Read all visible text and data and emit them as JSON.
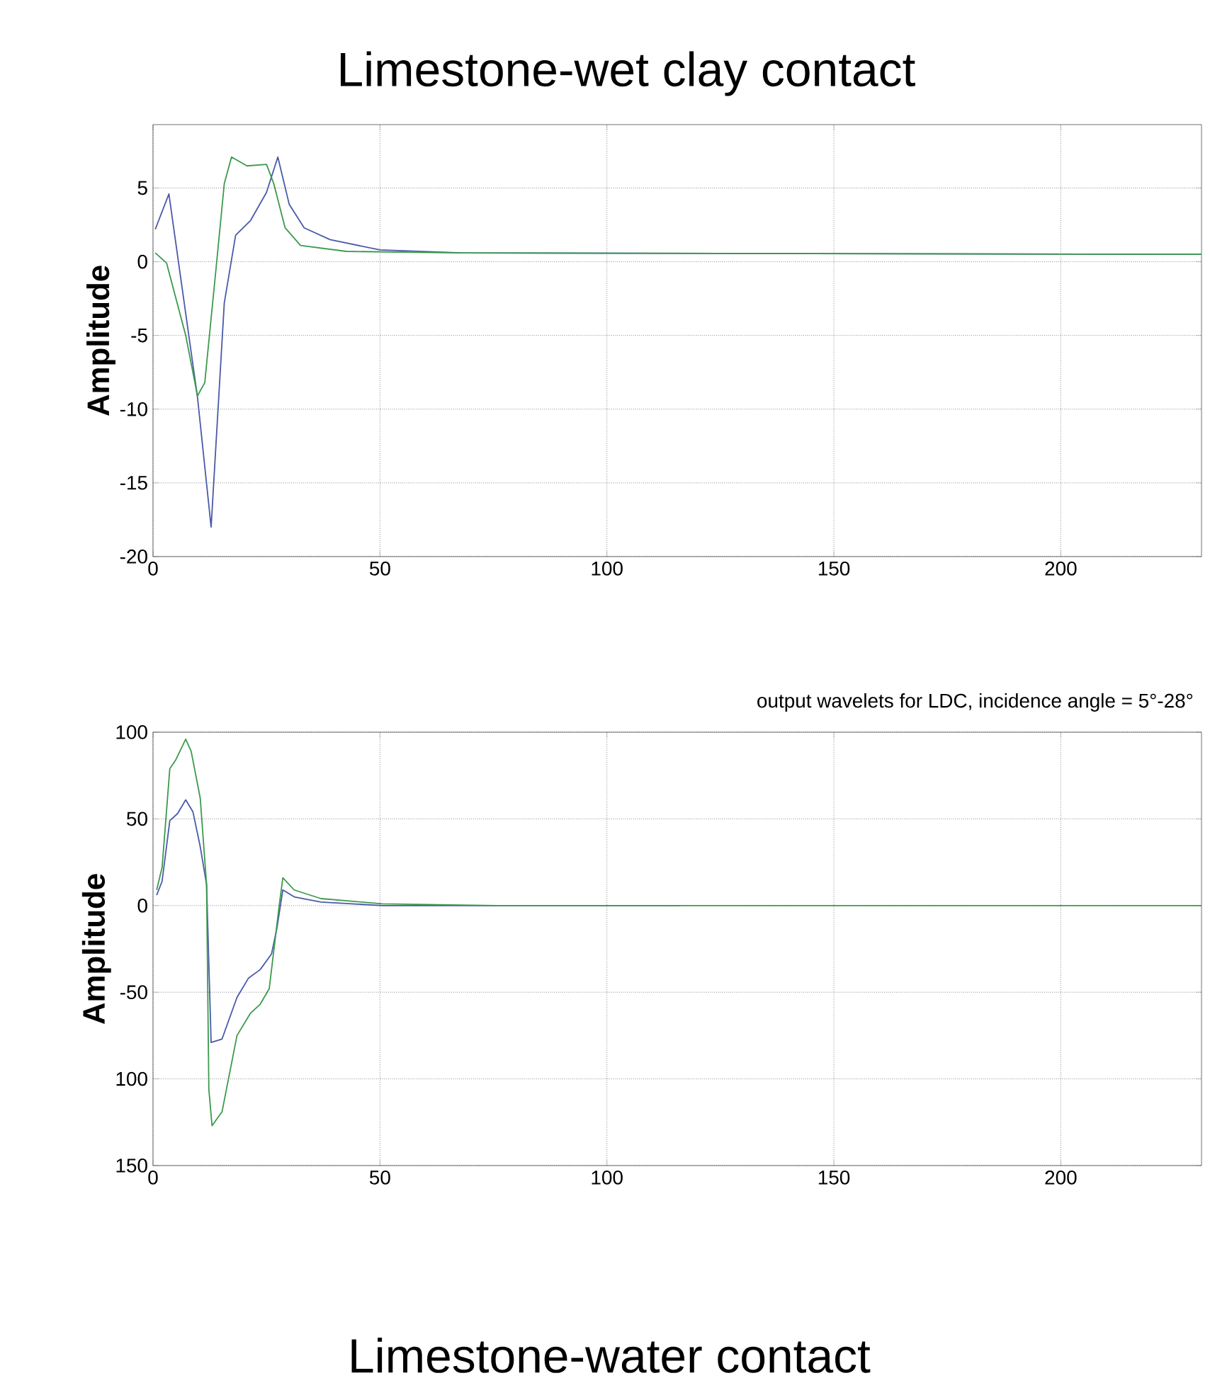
{
  "chart_data": [
    {
      "type": "line",
      "title": "Limestone-wet clay contact",
      "ylabel": "Amplitude",
      "xlim": [
        0,
        231
      ],
      "ylim": [
        -20,
        9.3
      ],
      "xticks": [
        0,
        50,
        100,
        150,
        200
      ],
      "yticks": [
        -20,
        -15,
        -10,
        -5,
        0,
        5
      ],
      "grid": true,
      "series": [
        {
          "color": "#4a5aa8",
          "x": [
            0.5,
            3.5,
            9.8,
            12.8,
            15.7,
            18.2,
            21.5,
            25,
            27.5,
            30,
            33.3,
            39,
            50,
            68,
            231
          ],
          "values": [
            2.2,
            4.6,
            -9.2,
            -18,
            -2.8,
            1.8,
            2.8,
            4.7,
            7.1,
            3.9,
            2.3,
            1.5,
            0.8,
            0.6,
            0.5
          ]
        },
        {
          "color": "#3c9a4c",
          "x": [
            0.5,
            3,
            7.2,
            9.8,
            11.4,
            14,
            15.7,
            17.3,
            20.7,
            25,
            26.6,
            29.1,
            32.5,
            42.6,
            68,
            231
          ],
          "values": [
            0.6,
            -0.1,
            -5,
            -9.1,
            -8.2,
            -0.1,
            5.3,
            7.1,
            6.5,
            6.6,
            5.3,
            2.3,
            1.1,
            0.7,
            0.6,
            0.5
          ]
        }
      ]
    },
    {
      "type": "line",
      "title": "output wavelets for LDC, incidence angle = 5°-28°",
      "ylabel": "Amplitude",
      "annotations": [
        "Limestone-water contact"
      ],
      "xlim": [
        0,
        231
      ],
      "ylim": [
        -150,
        100
      ],
      "xticks": [
        0,
        50,
        100,
        150,
        200
      ],
      "yticks": [
        {
          "value": -150,
          "label": "150"
        },
        {
          "value": -100,
          "label": "100"
        },
        -50,
        0,
        50,
        100
      ],
      "grid": true,
      "series": [
        {
          "color": "#4a5aa8",
          "x": [
            0.8,
            2,
            3.7,
            5.4,
            7.2,
            8.8,
            10.4,
            11.8,
            12.8,
            15.2,
            18.5,
            21,
            23.6,
            26.1,
            27.3,
            28.6,
            31.1,
            37,
            50.5,
            116
          ],
          "values": [
            6,
            14,
            49,
            53,
            61,
            54,
            34,
            12,
            -79,
            -77,
            -53,
            -42,
            -37,
            -28,
            -13,
            9,
            5,
            2,
            0,
            0
          ]
        },
        {
          "color": "#3c9a4c",
          "x": [
            0.8,
            2,
            3.7,
            5,
            7.2,
            8.4,
            10.4,
            11.8,
            12.3,
            13,
            15.2,
            18.5,
            21.5,
            23.6,
            25.6,
            27.8,
            28.6,
            31.1,
            37,
            50.5,
            75.8,
            231
          ],
          "values": [
            9,
            22,
            79,
            84,
            96,
            89,
            62,
            12,
            -106,
            -127,
            -119,
            -75,
            -62,
            -57,
            -48,
            0,
            16,
            9,
            4,
            1,
            0,
            0
          ]
        }
      ]
    }
  ]
}
